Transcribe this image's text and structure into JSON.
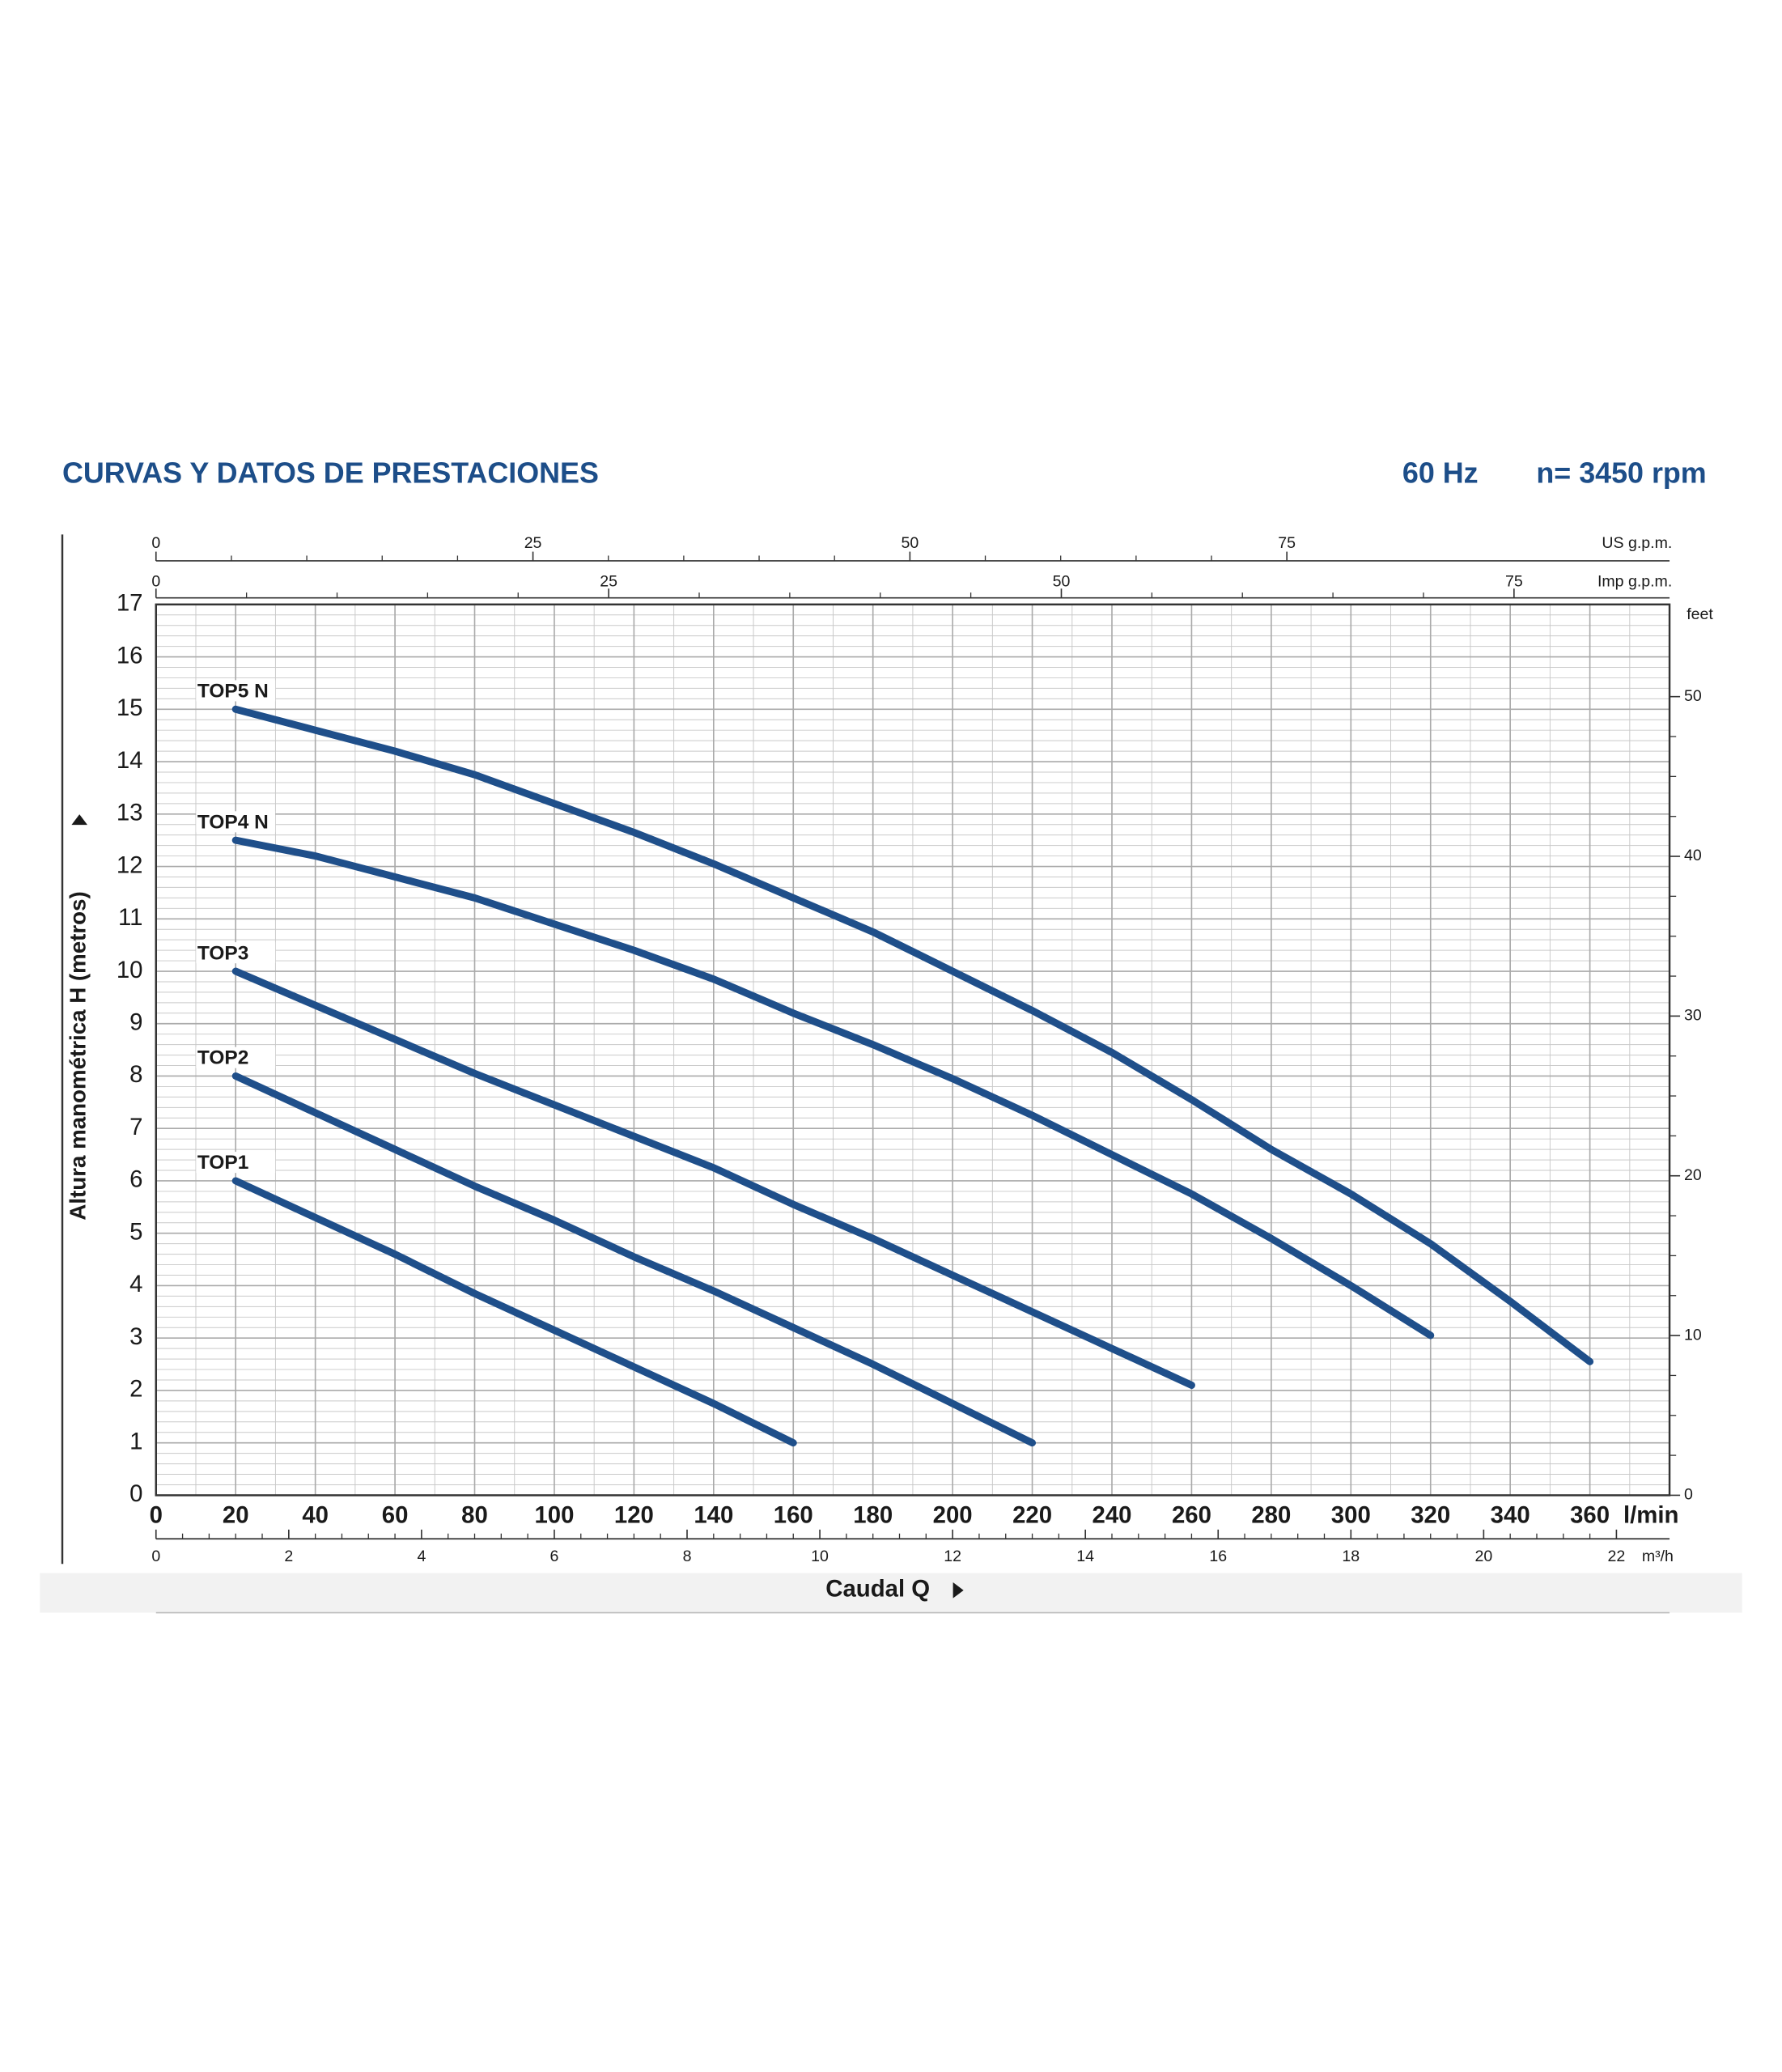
{
  "chart_data": {
    "type": "line",
    "title": "CURVAS Y DATOS DE PRESTACIONES",
    "frequency": "60 Hz",
    "speed": "n= 3450 rpm",
    "x_label": "Caudal Q",
    "x_unit": "l/min",
    "y_label": "Altura manométrica H (metros)",
    "y2_label": "feet",
    "x": [
      20,
      40,
      60,
      80,
      100,
      120,
      140,
      160,
      180,
      200,
      220,
      240,
      260,
      280,
      300,
      320,
      340,
      360
    ],
    "xlim": [
      0,
      380
    ],
    "xticks": [
      0,
      20,
      40,
      60,
      80,
      100,
      120,
      140,
      160,
      180,
      200,
      220,
      240,
      260,
      280,
      300,
      320,
      340,
      360
    ],
    "ylim": [
      0,
      17
    ],
    "yticks": [
      0,
      1,
      2,
      3,
      4,
      5,
      6,
      7,
      8,
      9,
      10,
      11,
      12,
      13,
      14,
      15,
      16,
      17
    ],
    "y2lim": [
      0,
      55.77
    ],
    "y2ticks": [
      0,
      10,
      20,
      30,
      40,
      50
    ],
    "us_gpm_axis": {
      "label": "US g.p.m.",
      "xlim": [
        0,
        100.38
      ],
      "xticks": [
        0,
        25,
        50,
        75
      ]
    },
    "imp_gpm_axis": {
      "label": "Imp g.p.m.",
      "xlim": [
        0,
        83.59
      ],
      "xticks": [
        0,
        25,
        50,
        75
      ]
    },
    "m3h_axis": {
      "label": "m³/h",
      "xlim": [
        0,
        22.8
      ],
      "xticks": [
        0,
        2,
        4,
        6,
        8,
        10,
        12,
        14,
        16,
        18,
        20,
        22
      ]
    },
    "grid": true,
    "series": [
      {
        "name": "TOP5 N",
        "color": "#1f4f8a",
        "values": [
          15,
          14.6,
          14.2,
          13.75,
          13.2,
          12.65,
          12.05,
          11.4,
          10.75,
          10.0,
          9.25,
          8.45,
          7.55,
          6.6,
          5.75,
          4.8,
          3.7,
          2.55
        ]
      },
      {
        "name": "TOP4 N",
        "color": "#1f4f8a",
        "values": [
          12.5,
          12.2,
          11.8,
          11.4,
          10.9,
          10.4,
          9.85,
          9.2,
          8.6,
          7.95,
          7.25,
          6.5,
          5.75,
          4.9,
          4.0,
          3.05,
          null,
          null
        ]
      },
      {
        "name": "TOP3",
        "color": "#1f4f8a",
        "values": [
          10,
          9.35,
          8.7,
          8.05,
          7.45,
          6.85,
          6.25,
          5.55,
          4.9,
          4.2,
          3.5,
          2.8,
          2.1,
          null,
          null,
          null,
          null,
          null
        ]
      },
      {
        "name": "TOP2",
        "color": "#1f4f8a",
        "values": [
          8,
          7.3,
          6.6,
          5.9,
          5.25,
          4.55,
          3.9,
          3.2,
          2.5,
          1.75,
          1.0,
          null,
          null,
          null,
          null,
          null,
          null,
          null
        ]
      },
      {
        "name": "TOP1",
        "color": "#1f4f8a",
        "values": [
          6,
          5.3,
          4.6,
          3.85,
          3.15,
          2.45,
          1.75,
          1.0,
          null,
          null,
          null,
          null,
          null,
          null,
          null,
          null,
          null,
          null
        ]
      }
    ]
  }
}
